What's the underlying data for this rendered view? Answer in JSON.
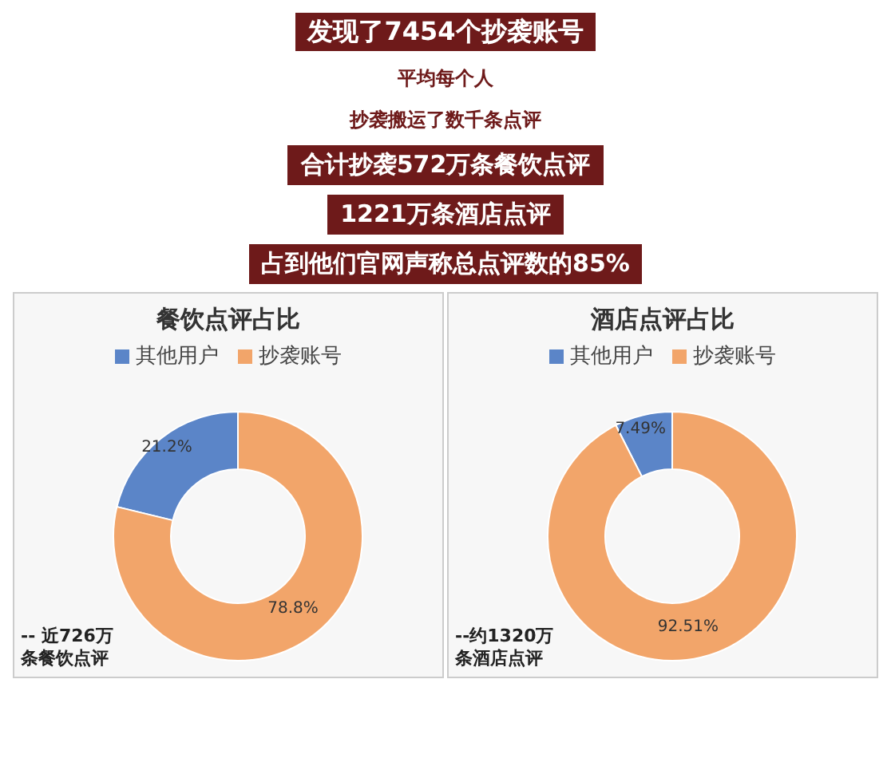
{
  "chart_data": [
    {
      "type": "other",
      "title": "发现了7454个抄袭账号",
      "annotations": [
        "平均每个人",
        "抄袭搬运了数千条点评",
        "合计抄袭572万条餐饮点评",
        "1221万条酒店点评",
        "占到他们官网声称总点评数的85%"
      ]
    },
    {
      "type": "donut",
      "title": "餐饮点评占比",
      "categories": [
        "其他用户",
        "抄袭账号"
      ],
      "values": [
        21.2,
        78.8
      ],
      "value_labels": [
        "21.2%",
        "78.8%"
      ],
      "colors": [
        "#5b85c8",
        "#f2a56a"
      ],
      "legend": "top",
      "annotations": [
        "-- 近726万条餐饮点评"
      ]
    },
    {
      "type": "donut",
      "title": "酒店点评占比",
      "categories": [
        "其他用户",
        "抄袭账号"
      ],
      "values": [
        7.49,
        92.51
      ],
      "value_labels": [
        "7.49%",
        "92.51%"
      ],
      "colors": [
        "#5b85c8",
        "#f2a56a"
      ],
      "legend": "top",
      "annotations": [
        "--约1320万条酒店点评"
      ]
    }
  ]
}
